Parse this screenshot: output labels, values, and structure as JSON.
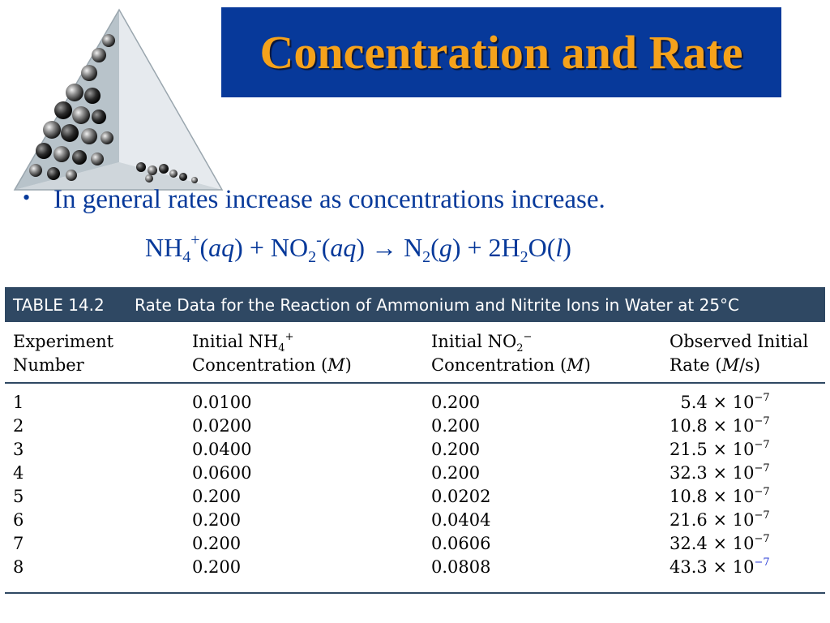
{
  "slide": {
    "title": "Concentration and Rate",
    "bullet": "In general rates increase as concentrations increase.",
    "equation": {
      "r1": "NH",
      "r1_sub": "4",
      "r1_sup": "+",
      "r1_state": "aq",
      "plus": "+",
      "r2": "NO",
      "r2_sub": "2",
      "r2_sup": "-",
      "r2_state": "aq",
      "arrow": "→",
      "p1": "N",
      "p1_sub": "2",
      "p1_state": "g",
      "p2": "2H",
      "p2_sub": "2",
      "p2_tail": "O",
      "p2_state": "l"
    },
    "colors": {
      "title_bg": "#07399a",
      "title_text": "#f5a21b",
      "body_text": "#07399a",
      "table_header": "#2f4863"
    }
  },
  "table": {
    "number": "TABLE 14.2",
    "caption": "Rate Data for the Reaction of Ammonium and Nitrite Ions in Water at 25°C",
    "headers": {
      "col1_line1": "Experiment",
      "col1_line2": "Number",
      "col2_line1": "Initial NH",
      "col2_sub": "4",
      "col2_sup": "+",
      "col2_line2_a": "Concentration (",
      "col2_unit": "M",
      "col2_line2_b": ")",
      "col3_line1": "Initial NO",
      "col3_sub": "2",
      "col3_sup": "−",
      "col3_line2_a": "Concentration (",
      "col3_unit": "M",
      "col3_line2_b": ")",
      "col4_line1": "Observed Initial",
      "col4_line2_a": "Rate (",
      "col4_unit": "M",
      "col4_line2_b": "/s)"
    },
    "rows": [
      {
        "exp": "1",
        "nh4": "0.0100",
        "no2": "0.200",
        "rate": "5.4",
        "exp10": "× 10",
        "pow": "−7"
      },
      {
        "exp": "2",
        "nh4": "0.0200",
        "no2": "0.200",
        "rate": "10.8",
        "exp10": "× 10",
        "pow": "−7"
      },
      {
        "exp": "3",
        "nh4": "0.0400",
        "no2": "0.200",
        "rate": "21.5",
        "exp10": "× 10",
        "pow": "−7"
      },
      {
        "exp": "4",
        "nh4": "0.0600",
        "no2": "0.200",
        "rate": "32.3",
        "exp10": "× 10",
        "pow": "−7"
      },
      {
        "exp": "5",
        "nh4": "0.200",
        "no2": "0.0202",
        "rate": "10.8",
        "exp10": "× 10",
        "pow": "−7"
      },
      {
        "exp": "6",
        "nh4": "0.200",
        "no2": "0.0404",
        "rate": "21.6",
        "exp10": "× 10",
        "pow": "−7"
      },
      {
        "exp": "7",
        "nh4": "0.200",
        "no2": "0.0606",
        "rate": "32.4",
        "exp10": "× 10",
        "pow": "−7"
      },
      {
        "exp": "8",
        "nh4": "0.200",
        "no2": "0.0808",
        "rate": "43.3",
        "exp10": "× 10",
        "pow": "−7"
      }
    ]
  }
}
